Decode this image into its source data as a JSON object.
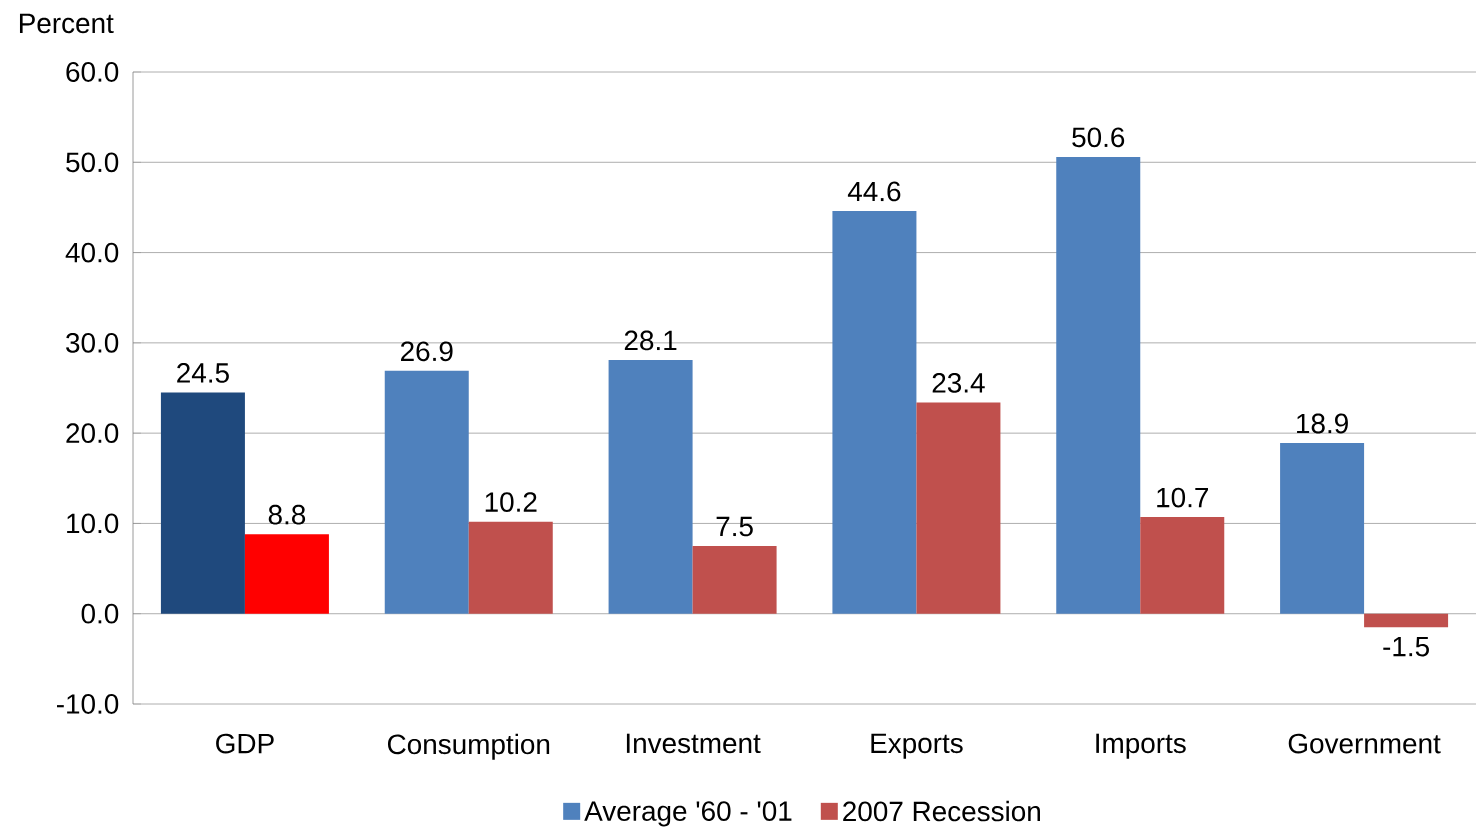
{
  "chart_data": {
    "type": "bar",
    "ylabel": "Percent",
    "categories": [
      "GDP",
      "Consumption",
      "Investment",
      "Exports",
      "Imports",
      "Government"
    ],
    "series": [
      {
        "name": "Average '60 - '01",
        "color": "#4f81bd",
        "colors": [
          "#1f497d",
          "#4f81bd",
          "#4f81bd",
          "#4f81bd",
          "#4f81bd",
          "#4f81bd"
        ],
        "values": [
          24.5,
          26.9,
          28.1,
          44.6,
          50.6,
          18.9
        ]
      },
      {
        "name": "2007 Recession",
        "color": "#c0504d",
        "colors": [
          "#ff0000",
          "#c0504d",
          "#c0504d",
          "#c0504d",
          "#c0504d",
          "#c0504d"
        ],
        "values": [
          8.8,
          10.2,
          7.5,
          23.4,
          10.7,
          -1.5
        ]
      }
    ],
    "ylim": [
      -10,
      60
    ],
    "yticks": [
      {
        "value": -10,
        "label": "-10.0"
      },
      {
        "value": 0,
        "label": "0.0"
      },
      {
        "value": 10,
        "label": "10.0"
      },
      {
        "value": 20,
        "label": "20.0"
      },
      {
        "value": 30,
        "label": "30.0"
      },
      {
        "value": 40,
        "label": "40.0"
      },
      {
        "value": 50,
        "label": "50.0"
      },
      {
        "value": 60,
        "label": "60.0"
      }
    ],
    "grid": "y",
    "legend": "bottom",
    "data_labels": true
  }
}
